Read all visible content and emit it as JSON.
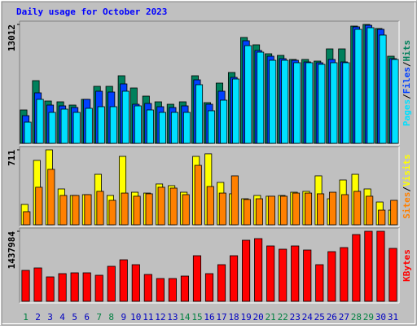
{
  "chart_data": [
    {
      "type": "bar",
      "title": "Daily usage for October 2023",
      "ylim": [
        0,
        13012
      ],
      "yticks": [
        13012
      ],
      "legend_separator": "/",
      "series": [
        {
          "name": "Hits",
          "color": "#00805c",
          "values": [
            3654,
            6862,
            4634,
            4545,
            4189,
            4813,
            6239,
            6239,
            7397,
            6060,
            5169,
            4545,
            4278,
            4545,
            7397,
            4456,
            6595,
            7754,
            11586,
            10784,
            9804,
            9625,
            9180,
            9180,
            9002,
            10338,
            10338,
            12834,
            13012,
            12566,
            9536
          ]
        },
        {
          "name": "Files",
          "color": "#0040ff",
          "values": [
            3030,
            5526,
            4189,
            4100,
            3921,
            4813,
            5704,
            5615,
            6506,
            4278,
            4367,
            4010,
            3921,
            4100,
            6951,
            4278,
            5704,
            7219,
            11229,
            10160,
            9536,
            9268,
            9090,
            8912,
            8823,
            9180,
            8912,
            12744,
            12922,
            12477,
            9268
          ]
        },
        {
          "name": "Pages",
          "color": "#00e0ff",
          "values": [
            2317,
            4813,
            3387,
            3743,
            3387,
            3832,
            4010,
            4010,
            5704,
            4100,
            3654,
            3387,
            3387,
            3387,
            6417,
            3565,
            4723,
            7040,
            10694,
            9981,
            9090,
            9090,
            8823,
            8823,
            8645,
            8823,
            8823,
            12477,
            12655,
            11853,
            9180
          ]
        }
      ]
    },
    {
      "type": "bar",
      "ylim": [
        0,
        711
      ],
      "yticks": [
        711
      ],
      "legend_separator": "/",
      "series": [
        {
          "name": "Visits",
          "color": "#ffff00",
          "values": [
            193,
            611,
            711,
            340,
            278,
            286,
            479,
            278,
            649,
            309,
            301,
            387,
            371,
            309,
            649,
            673,
            402,
            294,
            247,
            278,
            271,
            278,
            309,
            317,
            464,
            247,
            425,
            479,
            340,
            216,
            139
          ]
        },
        {
          "name": "Sites",
          "color": "#ff8000",
          "values": [
            124,
            356,
            526,
            278,
            278,
            286,
            317,
            232,
            301,
            271,
            294,
            356,
            348,
            286,
            564,
            363,
            301,
            464,
            240,
            247,
            271,
            271,
            301,
            301,
            294,
            309,
            286,
            317,
            271,
            139,
            232
          ]
        }
      ]
    },
    {
      "type": "bar",
      "ylim": [
        0,
        1437984
      ],
      "yticks": [
        1437984
      ],
      "categories": [
        "1",
        "2",
        "3",
        "4",
        "5",
        "6",
        "7",
        "8",
        "9",
        "10",
        "11",
        "12",
        "13",
        "14",
        "15",
        "16",
        "17",
        "18",
        "19",
        "20",
        "21",
        "22",
        "23",
        "24",
        "25",
        "26",
        "27",
        "28",
        "29",
        "30",
        "31"
      ],
      "label_colors": [
        "#008040",
        "#0000c0",
        "#0000c0",
        "#0000c0",
        "#0000c0",
        "#0000c0",
        "#008040",
        "#008040",
        "#0000c0",
        "#0000c0",
        "#0000c0",
        "#0000c0",
        "#0000c0",
        "#008040",
        "#008040",
        "#0000c0",
        "#0000c0",
        "#0000c0",
        "#0000c0",
        "#0000c0",
        "#008040",
        "#008040",
        "#0000c0",
        "#0000c0",
        "#0000c0",
        "#0000c0",
        "#0000c0",
        "#008040",
        "#008040",
        "#0000c0",
        "#0000c0"
      ],
      "series": [
        {
          "name": "KBytes",
          "color": "#ff0000",
          "values": [
            635398,
            685561,
            501630,
            568514,
            585235,
            585235,
            535072,
            719003,
            852771,
            752445,
            551793,
            468188,
            468188,
            518351,
            936376,
            568514,
            752445,
            936376,
            1254075,
            1287517,
            1137028,
            1070144,
            1137028,
            1053423,
            752445,
            1019981,
            1103586,
            1371122,
            1437984,
            1437984,
            1086865
          ]
        }
      ]
    }
  ]
}
